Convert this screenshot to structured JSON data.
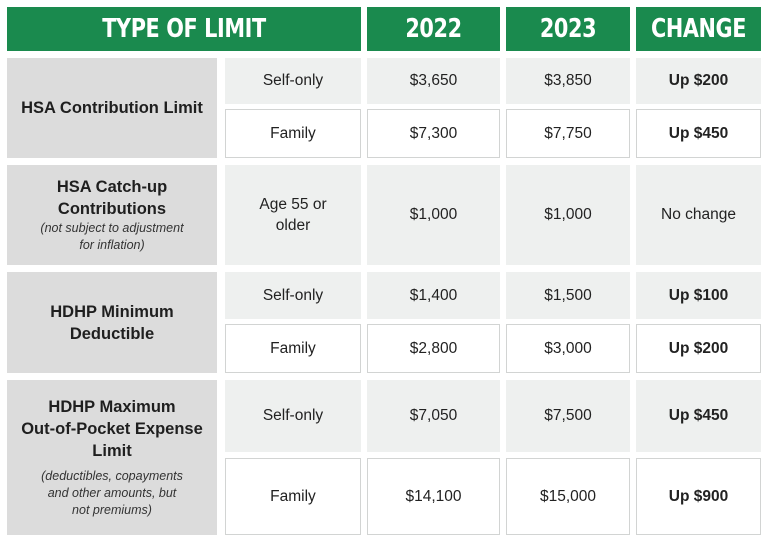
{
  "header": {
    "type_of_limit": "TYPE OF LIMIT",
    "year1": "2022",
    "year2": "2023",
    "change": "CHANGE"
  },
  "rows": {
    "hsa_contribution": {
      "label": "HSA Contribution Limit",
      "self_only": {
        "tier": "Self-only",
        "y2022": "$3,650",
        "y2023": "$3,850",
        "change": "Up $200"
      },
      "family": {
        "tier": "Family",
        "y2022": "$7,300",
        "y2023": "$7,750",
        "change": "Up $450"
      }
    },
    "hsa_catchup": {
      "label_line1": "HSA Catch-up",
      "label_line2": "Contributions",
      "note_line1": "(not subject to adjustment",
      "note_line2": "for inflation)",
      "tier_line1": "Age 55 or",
      "tier_line2": "older",
      "y2022": "$1,000",
      "y2023": "$1,000",
      "change": "No change"
    },
    "hdhp_min_deductible": {
      "label_line1": "HDHP Minimum",
      "label_line2": "Deductible",
      "self_only": {
        "tier": "Self-only",
        "y2022": "$1,400",
        "y2023": "$1,500",
        "change": "Up $100"
      },
      "family": {
        "tier": "Family",
        "y2022": "$2,800",
        "y2023": "$3,000",
        "change": "Up $200"
      }
    },
    "hdhp_max_oop": {
      "label_line1": "HDHP Maximum",
      "label_line2": "Out-of-Pocket Expense",
      "label_line3": "Limit",
      "note_line1": "(deductibles, copayments",
      "note_line2": "and other amounts, but",
      "note_line3": "not premiums)",
      "self_only": {
        "tier": "Self-only",
        "y2022": "$7,050",
        "y2023": "$7,500",
        "change": "Up $450"
      },
      "family": {
        "tier": "Family",
        "y2022": "$14,100",
        "y2023": "$15,000",
        "change": "Up $900"
      }
    }
  }
}
